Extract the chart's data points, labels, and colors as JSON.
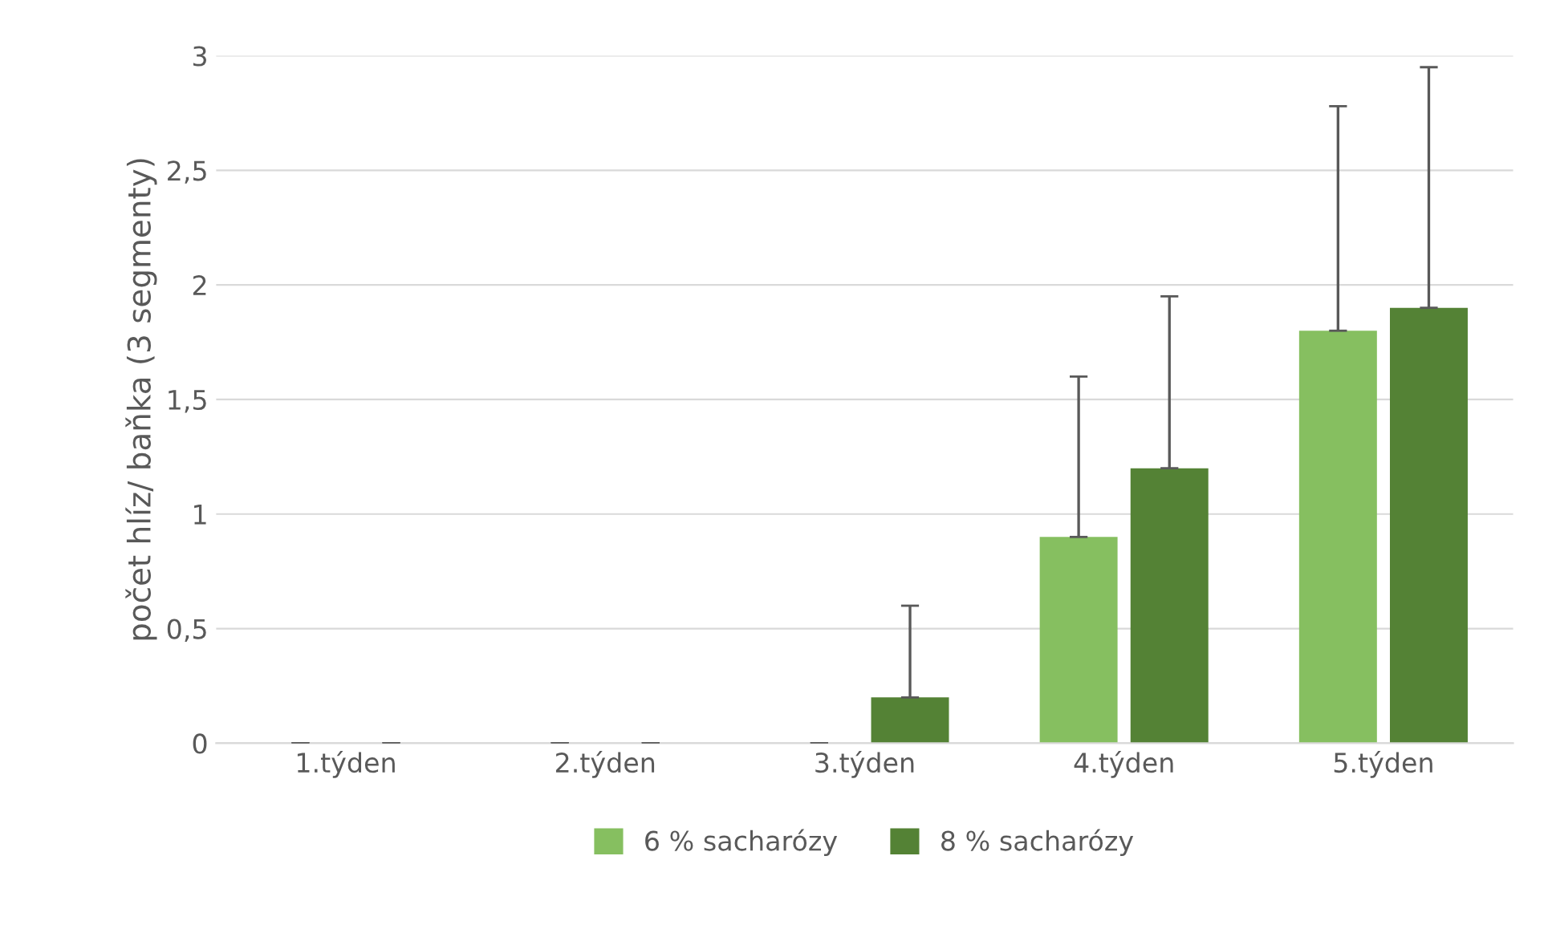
{
  "chart_data": {
    "type": "bar",
    "ylabel": "počet hlíz/ baňka (3 segmenty)",
    "categories": [
      "1.týden",
      "2.týden",
      "3.týden",
      "4.týden",
      "5.týden"
    ],
    "series": [
      {
        "name": "6 % sacharózy",
        "color": "#86bf60",
        "values": [
          0,
          0,
          0,
          0.9,
          1.8
        ],
        "errors": [
          [
            0,
            0
          ],
          [
            0,
            0
          ],
          [
            0,
            0
          ],
          [
            0.9,
            1.6
          ],
          [
            1.8,
            2.78
          ]
        ]
      },
      {
        "name": "8 % sacharózy",
        "color": "#548235",
        "values": [
          0,
          0,
          0.2,
          1.2,
          1.9
        ],
        "errors": [
          [
            0,
            0
          ],
          [
            0,
            0
          ],
          [
            0.2,
            0.6
          ],
          [
            1.2,
            1.95
          ],
          [
            1.9,
            2.95
          ]
        ]
      }
    ],
    "ylim": [
      0,
      3
    ],
    "yticks": [
      {
        "value": 0,
        "label": "0"
      },
      {
        "value": 0.5,
        "label": "0,5"
      },
      {
        "value": 1,
        "label": "1"
      },
      {
        "value": 1.5,
        "label": "1,5"
      },
      {
        "value": 2,
        "label": "2"
      },
      {
        "value": 2.5,
        "label": "2,5"
      },
      {
        "value": 3,
        "label": "3"
      }
    ],
    "grid": "y",
    "legend": "bottom"
  }
}
